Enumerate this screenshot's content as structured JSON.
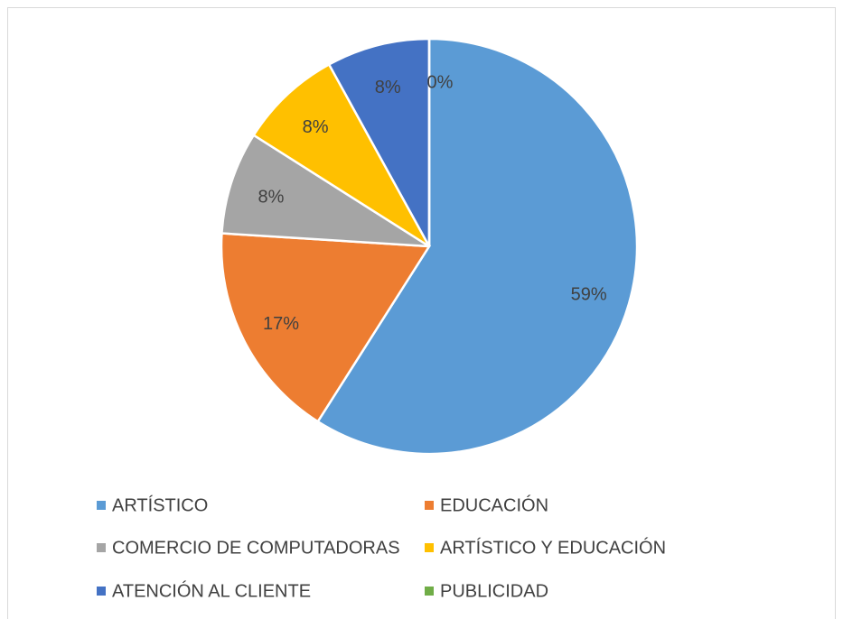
{
  "chart_data": {
    "type": "pie",
    "categories": [
      "ARTÍSTICO",
      "EDUCACIÓN",
      "COMERCIO DE COMPUTADORAS",
      "ARTÍSTICO Y EDUCACIÓN",
      "ATENCIÓN AL CLIENTE",
      "PUBLICIDAD"
    ],
    "values": [
      59,
      17,
      8,
      8,
      8,
      0
    ],
    "value_labels": [
      "59%",
      "17%",
      "8%",
      "8%",
      "8%",
      "0%"
    ],
    "colors": [
      "#5b9bd5",
      "#ed7d31",
      "#a5a5a5",
      "#ffc000",
      "#4472c4",
      "#70ad47"
    ],
    "legend": "bottom"
  }
}
